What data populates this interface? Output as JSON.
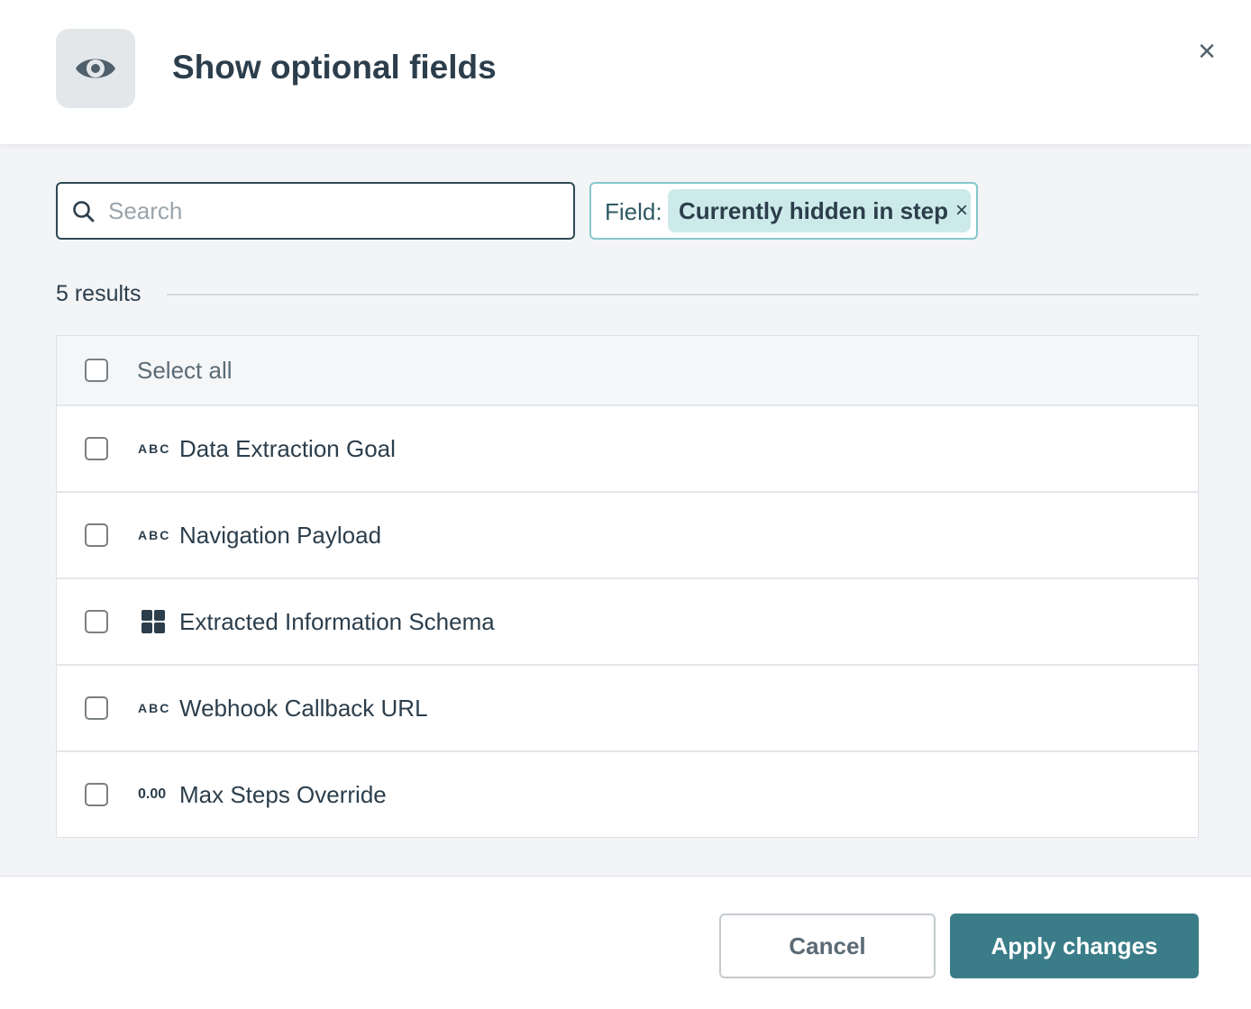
{
  "dialog": {
    "title": "Show optional fields",
    "header_icon": "eye-icon"
  },
  "search": {
    "placeholder": "Search",
    "value": ""
  },
  "filter": {
    "label": "Field:",
    "chip": "Currently hidden in step",
    "chip_remove": "×"
  },
  "results": {
    "count_label": "5 results"
  },
  "list": {
    "select_all": "Select all",
    "items": [
      {
        "type_icon": "ABC",
        "label": "Data Extraction Goal"
      },
      {
        "type_icon": "ABC",
        "label": "Navigation Payload"
      },
      {
        "type_icon": "grid",
        "label": "Extracted Information Schema"
      },
      {
        "type_icon": "ABC",
        "label": "Webhook Callback URL"
      },
      {
        "type_icon": "0.00",
        "label": "Max Steps Override"
      }
    ]
  },
  "footer": {
    "cancel": "Cancel",
    "apply": "Apply changes"
  },
  "colors": {
    "primary": "#3a7d88",
    "chip_bg": "#cdeaea",
    "text": "#2c3e4c"
  }
}
